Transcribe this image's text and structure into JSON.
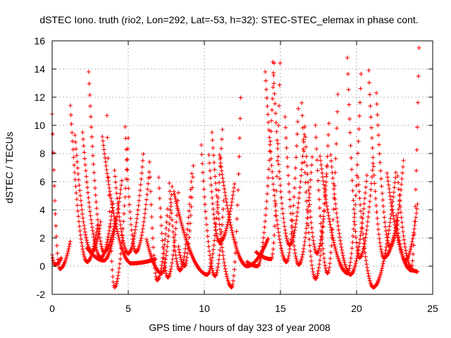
{
  "chart_data": {
    "type": "scatter",
    "title": "dSTEC Iono. truth (rio2, Lon=292, Lat=-53, h=32): STEC-STEC_elemax in phase cont.",
    "xlabel": "GPS time / hours of day 323 of year 2008",
    "ylabel": "dSTEC  / TECUs",
    "xlim": [
      0,
      25
    ],
    "ylim": [
      -2,
      16
    ],
    "x_ticks": [
      "0",
      "5",
      "10",
      "15",
      "20",
      "25"
    ],
    "y_ticks": [
      "-2",
      "0",
      "2",
      "4",
      "6",
      "8",
      "10",
      "12",
      "14",
      "16"
    ],
    "grid": true,
    "marker": "+",
    "color": "#ff0000",
    "arcs": [
      {
        "t0": 0.0,
        "tmin": 0.5,
        "t1": 1.2,
        "y0": 10.8,
        "ymin": -0.2,
        "y1": 1.8
      },
      {
        "t0": 0.0,
        "tmin": 0.2,
        "t1": 0.6,
        "y0": 0.8,
        "ymin": 0.1,
        "y1": 0.6
      },
      {
        "t0": 1.2,
        "tmin": 2.3,
        "t1": 3.0,
        "y0": 11.4,
        "ymin": 0.3,
        "y1": 3.0
      },
      {
        "t0": 1.5,
        "tmin": 2.6,
        "t1": 3.2,
        "y0": 9.3,
        "ymin": 1.0,
        "y1": 3.3
      },
      {
        "t0": 2.0,
        "tmin": 3.2,
        "t1": 4.0,
        "y0": 9.5,
        "ymin": 0.6,
        "y1": 4.5
      },
      {
        "t0": 2.4,
        "tmin": 3.4,
        "t1": 4.2,
        "y0": 13.8,
        "ymin": 1.0,
        "y1": 3.5
      },
      {
        "t0": 2.3,
        "tmin": 3.4,
        "t1": 4.6,
        "y0": 1.3,
        "ymin": 0.4,
        "y1": 6.3
      },
      {
        "t0": 3.6,
        "tmin": 4.1,
        "t1": 5.0,
        "y0": 10.7,
        "ymin": -1.5,
        "y1": 9.1
      },
      {
        "t0": 4.1,
        "tmin": 5.0,
        "t1": 6.0,
        "y0": 6.8,
        "ymin": 0.9,
        "y1": 8.1
      },
      {
        "t0": 4.8,
        "tmin": 5.5,
        "t1": 6.4,
        "y0": 9.9,
        "ymin": 1.0,
        "y1": 7.0
      },
      {
        "t0": 3.3,
        "tmin": 5.2,
        "t1": 6.8,
        "y0": 9.2,
        "ymin": 0.2,
        "y1": 0.5
      },
      {
        "t0": 6.4,
        "tmin": 6.9,
        "t1": 7.6,
        "y0": 7.4,
        "ymin": -1.0,
        "y1": 4.2
      },
      {
        "t0": 7.0,
        "tmin": 7.6,
        "t1": 8.3,
        "y0": 6.3,
        "ymin": -0.8,
        "y1": 5.3
      },
      {
        "t0": 6.2,
        "tmin": 7.2,
        "t1": 7.9,
        "y0": 1.9,
        "ymin": -0.5,
        "y1": 6.0
      },
      {
        "t0": 7.7,
        "tmin": 8.4,
        "t1": 9.2,
        "y0": 5.9,
        "ymin": -0.3,
        "y1": 7.1
      },
      {
        "t0": 8.3,
        "tmin": 8.7,
        "t1": 9.3,
        "y0": 1.4,
        "ymin": 0.0,
        "y1": 7.6
      },
      {
        "t0": 9.8,
        "tmin": 10.7,
        "t1": 11.3,
        "y0": 8.6,
        "ymin": -0.7,
        "y1": 5.2
      },
      {
        "t0": 8.0,
        "tmin": 10.2,
        "t1": 11.2,
        "y0": 5.3,
        "ymin": -0.6,
        "y1": 10.0
      },
      {
        "t0": 10.5,
        "tmin": 11.8,
        "t1": 12.4,
        "y0": 9.5,
        "ymin": -1.5,
        "y1": 12.4
      },
      {
        "t0": 10.3,
        "tmin": 11.0,
        "t1": 12.0,
        "y0": 7.9,
        "ymin": 1.7,
        "y1": 6.0
      },
      {
        "t0": 11.0,
        "tmin": 12.8,
        "t1": 14.2,
        "y0": 7.9,
        "ymin": 0.0,
        "y1": 2.0
      },
      {
        "t0": 12.8,
        "tmin": 13.5,
        "t1": 14.6,
        "y0": 0.3,
        "ymin": 0.0,
        "y1": 14.8
      },
      {
        "t0": 13.4,
        "tmin": 14.4,
        "t1": 15.0,
        "y0": 1.0,
        "ymin": 0.5,
        "y1": 15.6
      },
      {
        "t0": 14.0,
        "tmin": 15.4,
        "t1": 16.2,
        "y0": 13.8,
        "ymin": 0.3,
        "y1": 12.0
      },
      {
        "t0": 14.5,
        "tmin": 15.6,
        "t1": 16.6,
        "y0": 14.5,
        "ymin": 1.5,
        "y1": 9.9
      },
      {
        "t0": 15.3,
        "tmin": 16.2,
        "t1": 17.1,
        "y0": 10.6,
        "ymin": 0.1,
        "y1": 8.0
      },
      {
        "t0": 16.4,
        "tmin": 17.3,
        "t1": 18.2,
        "y0": 11.6,
        "ymin": -0.9,
        "y1": 10.5
      },
      {
        "t0": 16.6,
        "tmin": 17.4,
        "t1": 18.1,
        "y0": 9.9,
        "ymin": 0.9,
        "y1": 7.7
      },
      {
        "t0": 17.3,
        "tmin": 18.1,
        "t1": 18.8,
        "y0": 10.0,
        "ymin": -0.5,
        "y1": 13.3
      },
      {
        "t0": 17.6,
        "tmin": 19.4,
        "t1": 20.3,
        "y0": 7.8,
        "ymin": -0.5,
        "y1": 13.8
      },
      {
        "t0": 19.4,
        "tmin": 20.2,
        "t1": 21.1,
        "y0": 14.8,
        "ymin": 0.6,
        "y1": 7.6
      },
      {
        "t0": 18.3,
        "tmin": 19.6,
        "t1": 20.7,
        "y0": 7.9,
        "ymin": -0.6,
        "y1": 6.7
      },
      {
        "t0": 20.1,
        "tmin": 21.1,
        "t1": 22.6,
        "y0": 6.3,
        "ymin": -1.5,
        "y1": 6.8
      },
      {
        "t0": 20.8,
        "tmin": 21.8,
        "t1": 22.7,
        "y0": 13.9,
        "ymin": 0.6,
        "y1": 3.3
      },
      {
        "t0": 21.3,
        "tmin": 22.2,
        "t1": 23.1,
        "y0": 12.3,
        "ymin": 1.4,
        "y1": 7.7
      },
      {
        "t0": 22.7,
        "tmin": 23.6,
        "t1": 24.1,
        "y0": 6.4,
        "ymin": -0.1,
        "y1": 15.5
      },
      {
        "t0": 22.0,
        "tmin": 23.6,
        "t1": 24.0,
        "y0": 6.6,
        "ymin": -0.3,
        "y1": -0.4
      },
      {
        "t0": 22.6,
        "tmin": 23.2,
        "t1": 24.0,
        "y0": 3.6,
        "ymin": 0.4,
        "y1": 4.4
      }
    ]
  }
}
